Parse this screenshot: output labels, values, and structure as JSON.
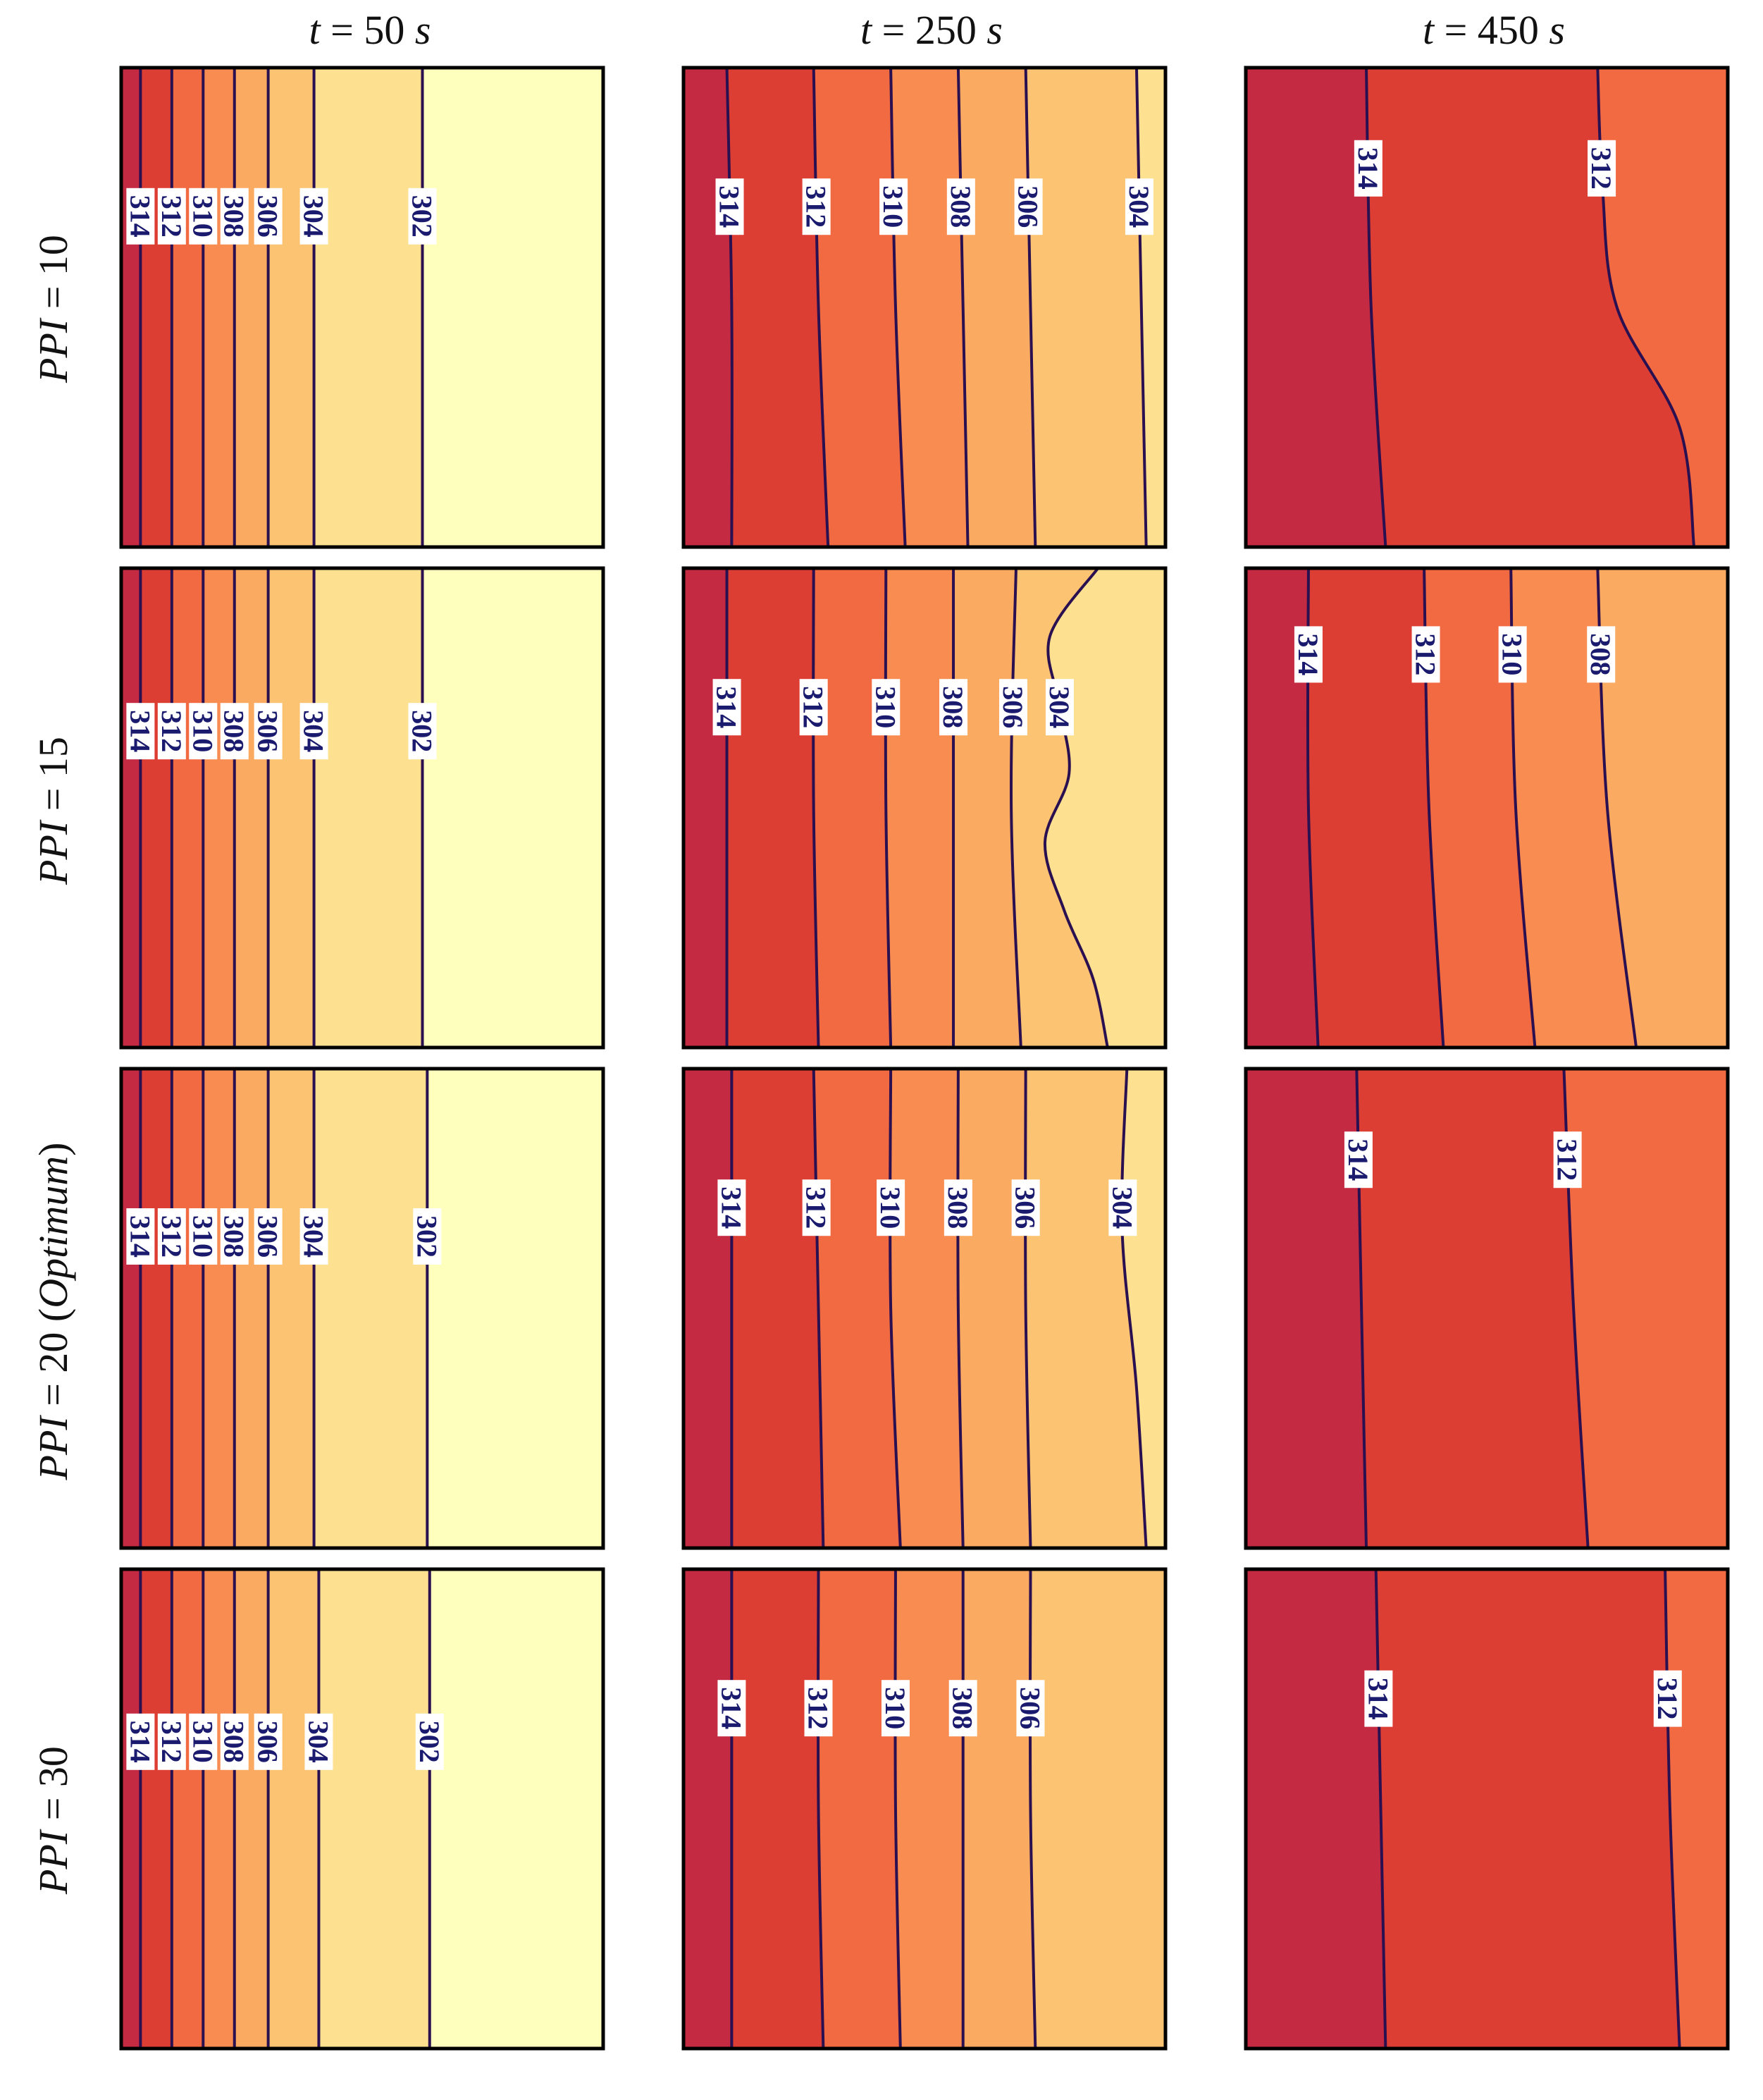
{
  "chart_data": {
    "type": "contour",
    "columns": [
      {
        "t": "t",
        "eq": " = ",
        "val": "50",
        "unit": "s"
      },
      {
        "t": "t",
        "eq": " = ",
        "val": "250",
        "unit": "s"
      },
      {
        "t": "t",
        "eq": " = ",
        "val": "450",
        "unit": "s"
      }
    ],
    "rows": [
      {
        "ppi": "PPI",
        "eq": " = ",
        "val": "10",
        "note": ""
      },
      {
        "ppi": "PPI",
        "eq": " = ",
        "val": "15",
        "note": ""
      },
      {
        "ppi": "PPI",
        "eq": " = ",
        "val": "20",
        "note": "Optimum"
      },
      {
        "ppi": "PPI",
        "eq": " = ",
        "val": "30",
        "note": ""
      }
    ],
    "colors": {
      "316": "#c42a41",
      "314": "#dd3e33",
      "312": "#f26a42",
      "310": "#f98c51",
      "308": "#fbaa62",
      "306": "#fcc372",
      "304": "#fde190",
      "302": "#ffffbd",
      "line": "#2a1050",
      "label": "#1a1a6e"
    },
    "panels": [
      {
        "row": 0,
        "col": 0,
        "levels": [
          {
            "v": 314,
            "x": [
              0.04,
              0.04
            ]
          },
          {
            "v": 312,
            "x": [
              0.105,
              0.105
            ]
          },
          {
            "v": 310,
            "x": [
              0.17,
              0.17
            ]
          },
          {
            "v": 308,
            "x": [
              0.235,
              0.235
            ]
          },
          {
            "v": 306,
            "x": [
              0.305,
              0.305
            ]
          },
          {
            "v": 304,
            "x": [
              0.4,
              0.4
            ]
          },
          {
            "v": 302,
            "x": [
              0.625,
              0.625
            ]
          }
        ],
        "label_y": 0.31
      },
      {
        "row": 0,
        "col": 1,
        "levels": [
          {
            "v": 314,
            "x": [
              0.09,
              0.1,
              0.1
            ]
          },
          {
            "v": 312,
            "x": [
              0.27,
              0.28,
              0.3
            ]
          },
          {
            "v": 310,
            "x": [
              0.43,
              0.44,
              0.46
            ]
          },
          {
            "v": 308,
            "x": [
              0.57,
              0.58,
              0.59
            ]
          },
          {
            "v": 306,
            "x": [
              0.71,
              0.72,
              0.73
            ]
          },
          {
            "v": 304,
            "x": [
              0.94,
              0.95,
              0.96
            ]
          }
        ],
        "label_y": 0.29
      },
      {
        "row": 0,
        "col": 2,
        "levels": [
          {
            "v": 314,
            "x": [
              0.25,
              0.26,
              0.29
            ]
          },
          {
            "v": 312,
            "x": [
              0.73,
              0.74,
              0.77,
              0.9,
              0.93
            ]
          }
        ],
        "label_y": 0.21
      },
      {
        "row": 1,
        "col": 0,
        "levels": [
          {
            "v": 314,
            "x": [
              0.04,
              0.04
            ]
          },
          {
            "v": 312,
            "x": [
              0.105,
              0.105
            ]
          },
          {
            "v": 310,
            "x": [
              0.17,
              0.17
            ]
          },
          {
            "v": 308,
            "x": [
              0.235,
              0.235
            ]
          },
          {
            "v": 306,
            "x": [
              0.305,
              0.305
            ]
          },
          {
            "v": 304,
            "x": [
              0.4,
              0.4
            ]
          },
          {
            "v": 302,
            "x": [
              0.625,
              0.625
            ]
          }
        ],
        "label_y": 0.34
      },
      {
        "row": 1,
        "col": 1,
        "levels": [
          {
            "v": 314,
            "x": [
              0.09,
              0.09,
              0.09
            ]
          },
          {
            "v": 312,
            "x": [
              0.27,
              0.27,
              0.28
            ]
          },
          {
            "v": 310,
            "x": [
              0.42,
              0.42,
              0.43
            ]
          },
          {
            "v": 308,
            "x": [
              0.56,
              0.56,
              0.56
            ]
          },
          {
            "v": 306,
            "x": [
              0.69,
              0.68,
              0.7
            ]
          },
          {
            "v": 304,
            "x": [
              0.86,
              0.76,
              0.78,
              0.8,
              0.75,
              0.79,
              0.85,
              0.88
            ]
          }
        ],
        "label_y": 0.29
      },
      {
        "row": 1,
        "col": 2,
        "levels": [
          {
            "v": 314,
            "x": [
              0.13,
              0.13,
              0.15
            ]
          },
          {
            "v": 312,
            "x": [
              0.37,
              0.38,
              0.41
            ]
          },
          {
            "v": 310,
            "x": [
              0.55,
              0.56,
              0.6
            ]
          },
          {
            "v": 308,
            "x": [
              0.73,
              0.75,
              0.81
            ]
          }
        ],
        "label_y": 0.18
      },
      {
        "row": 2,
        "col": 0,
        "levels": [
          {
            "v": 314,
            "x": [
              0.04,
              0.04
            ]
          },
          {
            "v": 312,
            "x": [
              0.105,
              0.105
            ]
          },
          {
            "v": 310,
            "x": [
              0.17,
              0.17
            ]
          },
          {
            "v": 308,
            "x": [
              0.235,
              0.235
            ]
          },
          {
            "v": 306,
            "x": [
              0.305,
              0.305
            ]
          },
          {
            "v": 304,
            "x": [
              0.4,
              0.4
            ]
          },
          {
            "v": 302,
            "x": [
              0.635,
              0.635
            ]
          }
        ],
        "label_y": 0.35
      },
      {
        "row": 2,
        "col": 1,
        "levels": [
          {
            "v": 314,
            "x": [
              0.1,
              0.1,
              0.1
            ]
          },
          {
            "v": 312,
            "x": [
              0.27,
              0.28,
              0.29
            ]
          },
          {
            "v": 310,
            "x": [
              0.43,
              0.43,
              0.45
            ]
          },
          {
            "v": 308,
            "x": [
              0.57,
              0.57,
              0.58
            ]
          },
          {
            "v": 306,
            "x": [
              0.71,
              0.71,
              0.72
            ]
          },
          {
            "v": 304,
            "x": [
              0.92,
              0.91,
              0.94,
              0.96
            ]
          }
        ],
        "label_y": 0.29
      },
      {
        "row": 2,
        "col": 2,
        "levels": [
          {
            "v": 314,
            "x": [
              0.23,
              0.24,
              0.25
            ]
          },
          {
            "v": 312,
            "x": [
              0.66,
              0.68,
              0.71
            ]
          }
        ],
        "label_y": 0.19
      },
      {
        "row": 3,
        "col": 0,
        "levels": [
          {
            "v": 314,
            "x": [
              0.04,
              0.04
            ]
          },
          {
            "v": 312,
            "x": [
              0.105,
              0.105
            ]
          },
          {
            "v": 310,
            "x": [
              0.17,
              0.17
            ]
          },
          {
            "v": 308,
            "x": [
              0.235,
              0.235
            ]
          },
          {
            "v": 306,
            "x": [
              0.305,
              0.305
            ]
          },
          {
            "v": 304,
            "x": [
              0.41,
              0.41
            ]
          },
          {
            "v": 302,
            "x": [
              0.64,
              0.64
            ]
          }
        ],
        "label_y": 0.36
      },
      {
        "row": 3,
        "col": 1,
        "levels": [
          {
            "v": 314,
            "x": [
              0.1,
              0.1,
              0.1
            ]
          },
          {
            "v": 312,
            "x": [
              0.28,
              0.28,
              0.29
            ]
          },
          {
            "v": 310,
            "x": [
              0.44,
              0.44,
              0.45
            ]
          },
          {
            "v": 308,
            "x": [
              0.58,
              0.58,
              0.58
            ]
          },
          {
            "v": 306,
            "x": [
              0.72,
              0.72,
              0.73
            ]
          }
        ],
        "label_y": 0.29
      },
      {
        "row": 3,
        "col": 2,
        "levels": [
          {
            "v": 314,
            "x": [
              0.27,
              0.28,
              0.29
            ]
          },
          {
            "v": 312,
            "x": [
              0.87,
              0.88,
              0.9
            ]
          }
        ],
        "label_y": 0.27
      }
    ]
  }
}
